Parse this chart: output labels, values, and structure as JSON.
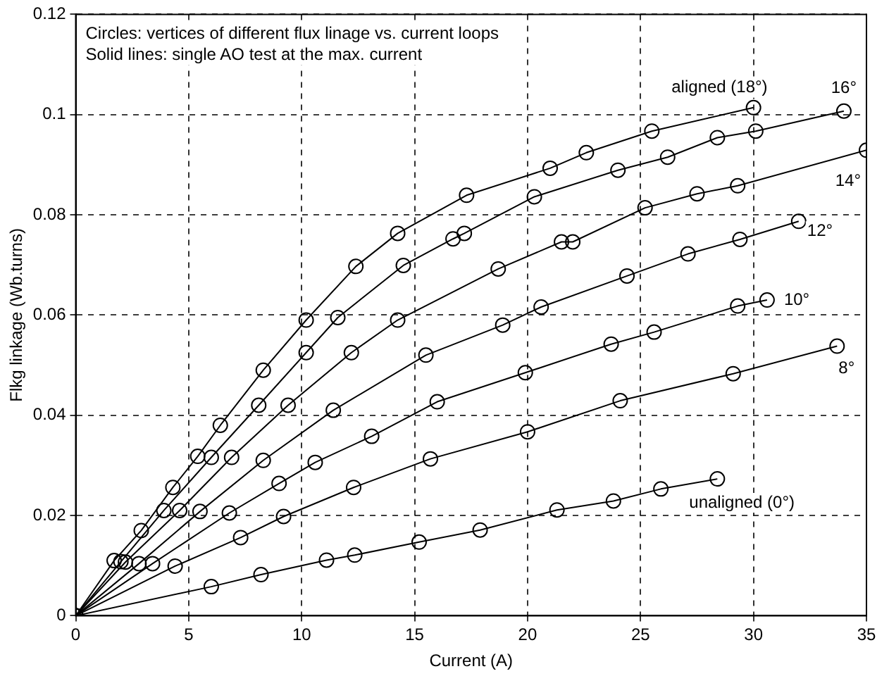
{
  "chart_data": {
    "type": "line",
    "xlabel": "Current (A)",
    "ylabel": "Flkg linkage (Wb.turns)",
    "xlim": [
      0,
      35
    ],
    "xticks": [
      0,
      5,
      10,
      15,
      20,
      25,
      30,
      35
    ],
    "ylim": [
      0,
      0.12
    ],
    "yticks": [
      0,
      0.02,
      0.04,
      0.06,
      0.08,
      0.1,
      0.12
    ],
    "grid": true,
    "legend": false,
    "marker": "circle",
    "line_style": "solid",
    "annotations": [
      "Circles: vertices of different flux linage vs. current loops",
      "Solid lines: single AO test at the max. current"
    ],
    "series": [
      {
        "name": "aligned (18°)",
        "color": "#000000",
        "x": [
          0,
          1.7,
          2.9,
          4.3,
          5.4,
          6.4,
          8.3,
          10.2,
          12.4,
          14.25,
          17.3,
          21.0,
          22.6,
          25.5,
          30.0
        ],
        "values": [
          0,
          0.011,
          0.017,
          0.0256,
          0.0318,
          0.038,
          0.049,
          0.059,
          0.0697,
          0.0763,
          0.0839,
          0.0893,
          0.0924,
          0.0967,
          0.1014
        ]
      },
      {
        "name": "16°",
        "color": "#000000",
        "x": [
          0,
          2.0,
          3.9,
          6.0,
          8.1,
          10.2,
          11.6,
          14.5,
          16.7,
          17.2,
          20.3,
          24.0,
          26.2,
          28.4,
          30.1,
          34.0
        ],
        "values": [
          0,
          0.0108,
          0.021,
          0.0316,
          0.042,
          0.0525,
          0.0595,
          0.0699,
          0.0752,
          0.0763,
          0.0836,
          0.0889,
          0.0915,
          0.0954,
          0.0967,
          0.1007
        ]
      },
      {
        "name": "14°",
        "color": "#000000",
        "x": [
          0,
          2.2,
          4.6,
          6.9,
          9.4,
          12.2,
          14.25,
          18.7,
          21.5,
          22.0,
          25.2,
          27.5,
          29.3,
          35.0
        ],
        "values": [
          0,
          0.0107,
          0.021,
          0.0316,
          0.042,
          0.0525,
          0.059,
          0.0692,
          0.0746,
          0.0746,
          0.0814,
          0.0842,
          0.0858,
          0.0929
        ]
      },
      {
        "name": "12°",
        "color": "#000000",
        "x": [
          0,
          2.8,
          5.5,
          8.3,
          11.4,
          15.5,
          18.9,
          20.6,
          24.4,
          27.1,
          29.4,
          32.0
        ],
        "values": [
          0,
          0.0104,
          0.0208,
          0.031,
          0.041,
          0.052,
          0.058,
          0.0616,
          0.0678,
          0.0722,
          0.0751,
          0.0787
        ]
      },
      {
        "name": "10°",
        "color": "#000000",
        "x": [
          0,
          3.4,
          6.8,
          9.0,
          10.6,
          13.1,
          16.0,
          19.9,
          23.7,
          25.6,
          29.3,
          30.6
        ],
        "values": [
          0,
          0.0104,
          0.0205,
          0.0264,
          0.0306,
          0.0358,
          0.0427,
          0.0485,
          0.0542,
          0.0566,
          0.0618,
          0.063
        ]
      },
      {
        "name": "8°",
        "color": "#000000",
        "x": [
          0,
          4.4,
          7.3,
          9.2,
          12.3,
          15.7,
          20.0,
          24.1,
          29.1,
          33.7
        ],
        "values": [
          0,
          0.0099,
          0.0156,
          0.0198,
          0.0256,
          0.0313,
          0.0367,
          0.0429,
          0.0483,
          0.0538
        ]
      },
      {
        "name": "unaligned (0°)",
        "color": "#000000",
        "x": [
          0,
          6.0,
          8.2,
          11.1,
          12.35,
          15.2,
          17.9,
          21.3,
          23.8,
          25.9,
          28.4
        ],
        "values": [
          0,
          0.0058,
          0.0082,
          0.0111,
          0.0121,
          0.0147,
          0.0171,
          0.0211,
          0.0229,
          0.0253,
          0.0273
        ]
      }
    ]
  }
}
